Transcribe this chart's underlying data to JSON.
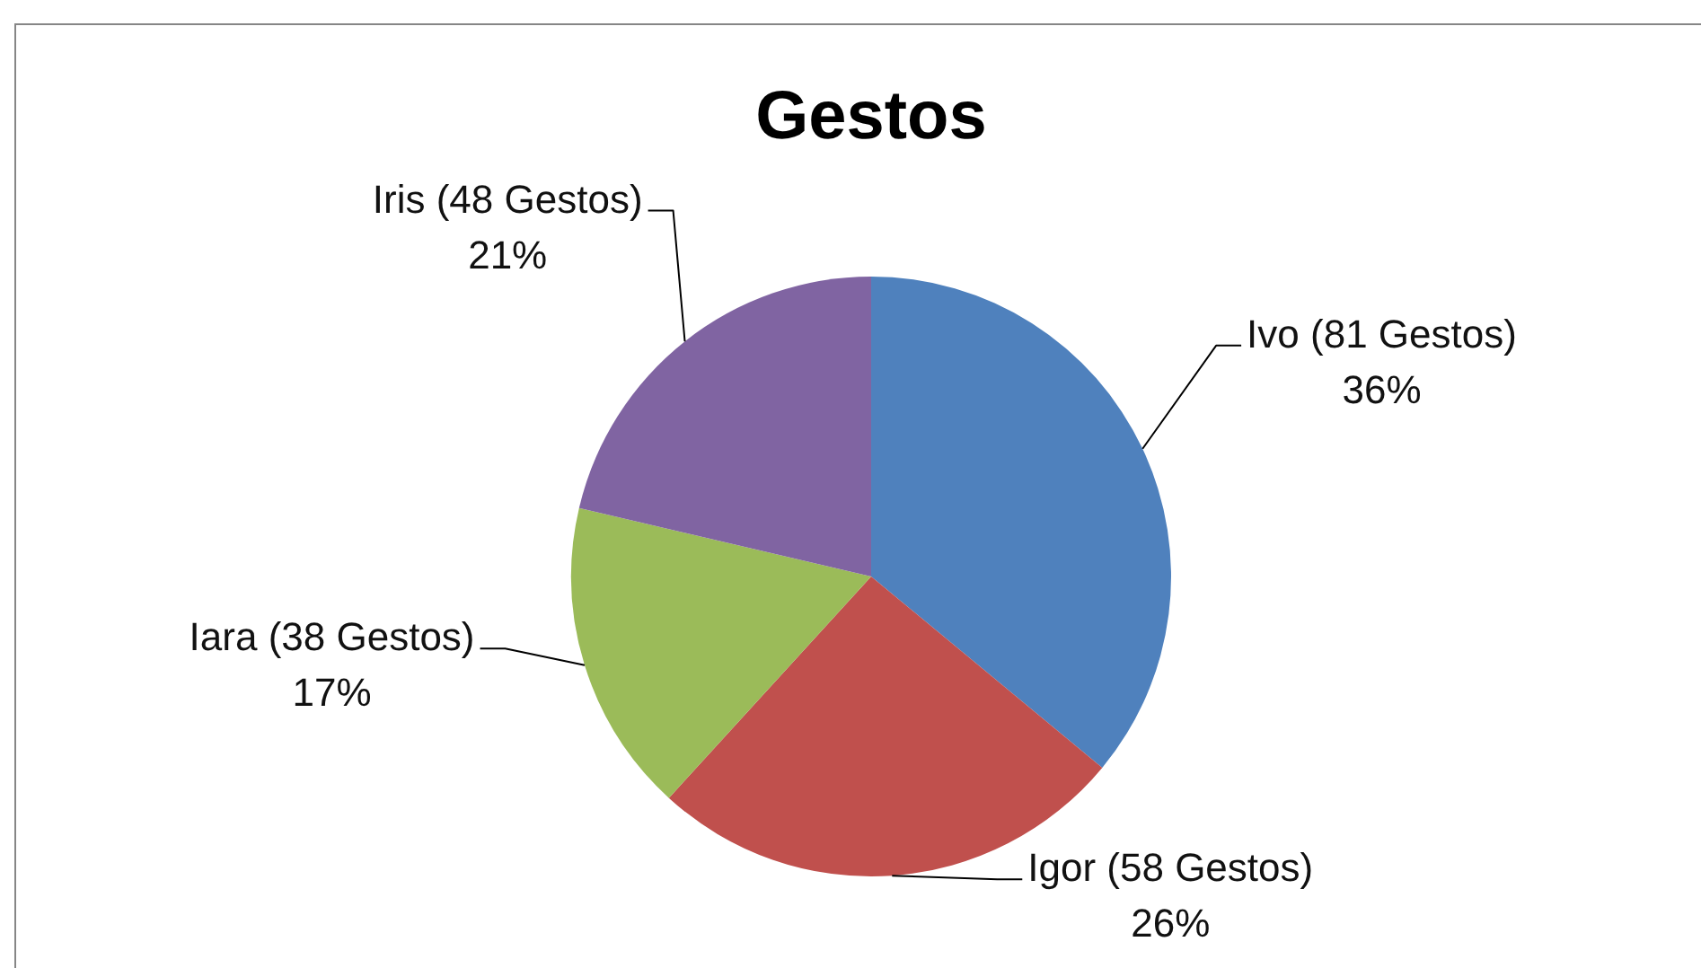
{
  "chart_data": {
    "type": "pie",
    "title": "Gestos",
    "categories": [
      "Ivo",
      "Igor",
      "Iara",
      "Iris"
    ],
    "values": [
      81,
      58,
      38,
      48
    ],
    "colors": [
      "#4f81bd",
      "#c0504d",
      "#9bbb59",
      "#8064a2"
    ],
    "value_labels": [
      "(81 Gestos)\n36%",
      "(58 Gestos)\n26%",
      "(38 Gestos)\n17%",
      "(48 Gestos)\n21%"
    ]
  }
}
